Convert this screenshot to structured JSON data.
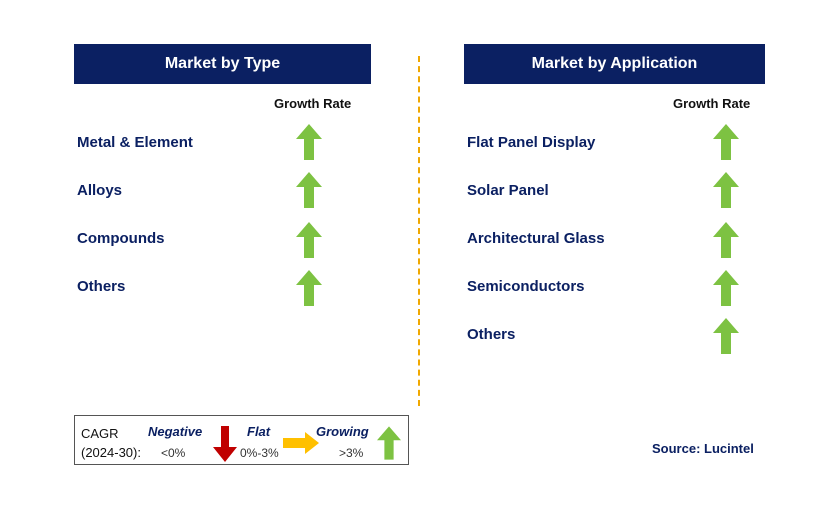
{
  "left_panel": {
    "title": "Market by Type",
    "growth_header": "Growth Rate",
    "rows": [
      {
        "label": "Metal & Element",
        "trend": "growing"
      },
      {
        "label": "Alloys",
        "trend": "growing"
      },
      {
        "label": "Compounds",
        "trend": "growing"
      },
      {
        "label": "Others",
        "trend": "growing"
      }
    ]
  },
  "right_panel": {
    "title": "Market by Application",
    "growth_header": "Growth Rate",
    "rows": [
      {
        "label": "Flat Panel Display",
        "trend": "growing"
      },
      {
        "label": "Solar Panel",
        "trend": "growing"
      },
      {
        "label": "Architectural Glass",
        "trend": "growing"
      },
      {
        "label": "Semiconductors",
        "trend": "growing"
      },
      {
        "label": "Others",
        "trend": "growing"
      }
    ]
  },
  "legend": {
    "cagr_line1": "CAGR",
    "cagr_line2": "(2024-30):",
    "negative_label": "Negative",
    "negative_range": "<0%",
    "flat_label": "Flat",
    "flat_range": "0%-3%",
    "growing_label": "Growing",
    "growing_range": ">3%"
  },
  "source": "Source: Lucintel",
  "colors": {
    "header_bg": "#0b2062",
    "growing": "#7dc242",
    "flat": "#ffc000",
    "negative": "#c00000",
    "divider": "#f0a800"
  }
}
